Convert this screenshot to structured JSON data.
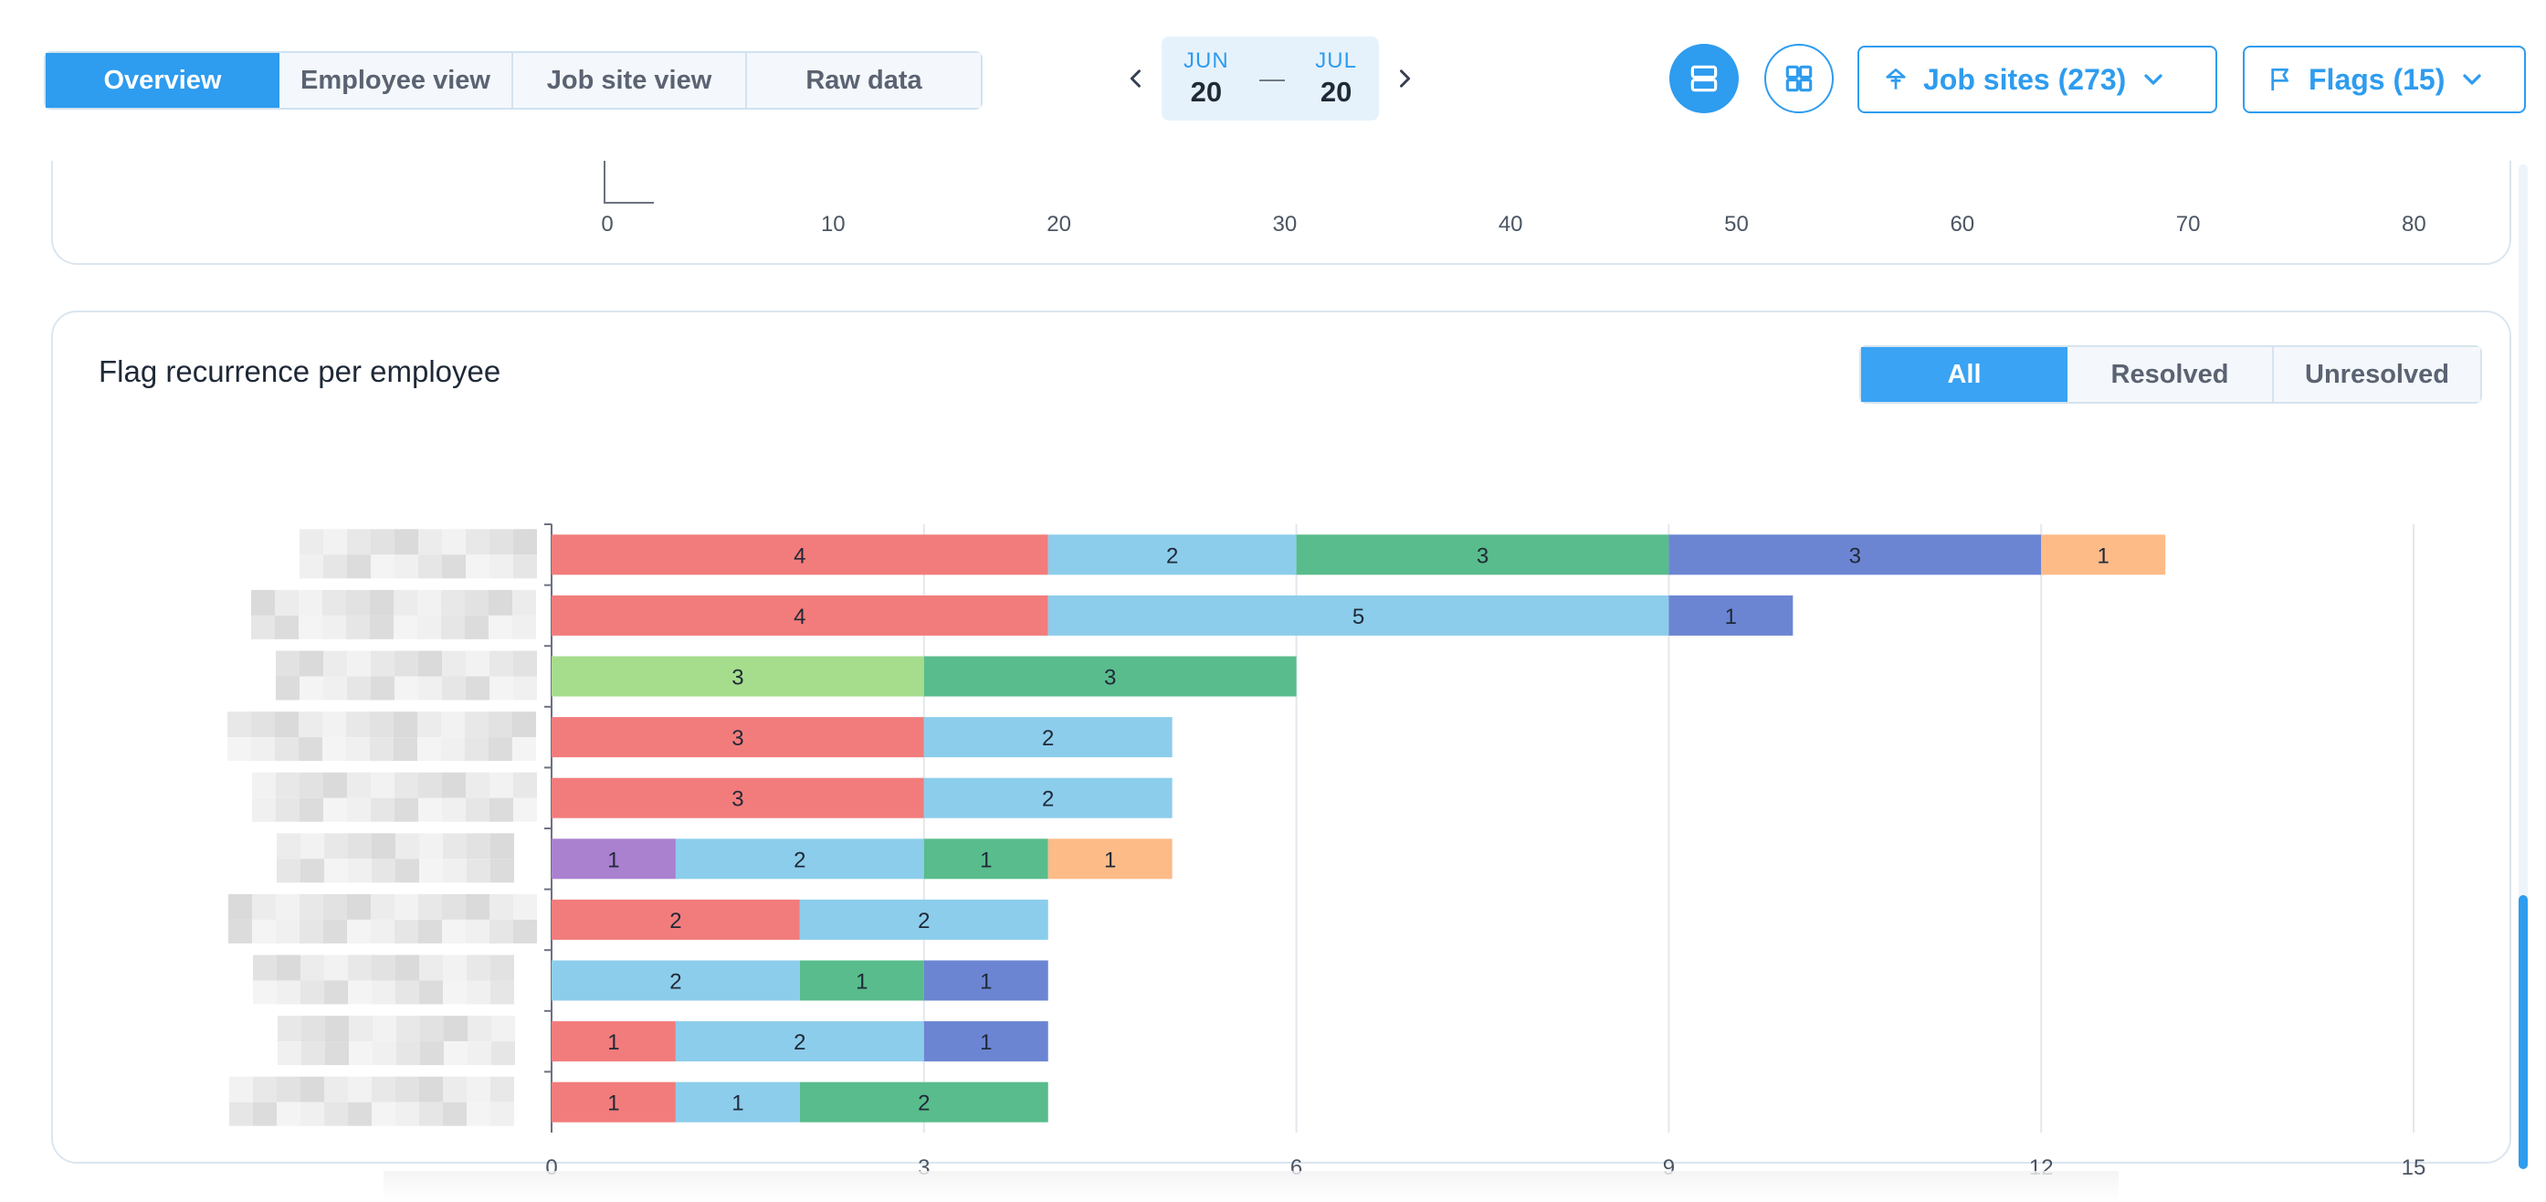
{
  "header": {
    "view_tabs": [
      {
        "label": "Overview",
        "active": true
      },
      {
        "label": "Employee view",
        "active": false
      },
      {
        "label": "Job site view",
        "active": false
      },
      {
        "label": "Raw data",
        "active": false
      }
    ],
    "date_range": {
      "start_month": "JUN",
      "start_day": "20",
      "separator": "—",
      "end_month": "JUL",
      "end_day": "20"
    },
    "job_sites_label": "Job sites (273)",
    "flags_label": "Flags (15)",
    "accent_color": "#2e9cef"
  },
  "prev_chart": {
    "x_ticks": [
      "0",
      "10",
      "20",
      "30",
      "40",
      "50",
      "60",
      "70",
      "80"
    ]
  },
  "card": {
    "title": "Flag recurrence per employee",
    "filter_tabs": [
      {
        "label": "All",
        "active": true
      },
      {
        "label": "Resolved",
        "active": false
      },
      {
        "label": "Unresolved",
        "active": false
      }
    ]
  },
  "chart_data": {
    "type": "bar",
    "orientation": "horizontal",
    "stacked": true,
    "title": "Flag recurrence per employee",
    "xlabel": "",
    "ylabel": "",
    "xlim": [
      0,
      15
    ],
    "x_ticks": [
      0,
      3,
      6,
      9,
      12,
      15
    ],
    "grid": true,
    "category_labels_redacted": true,
    "rows": [
      {
        "segments": [
          {
            "color": "#f27c7c",
            "value": 4
          },
          {
            "color": "#8ccdeb",
            "value": 2
          },
          {
            "color": "#59bc8c",
            "value": 3
          },
          {
            "color": "#6b85d3",
            "value": 3
          },
          {
            "color": "#fdbb88",
            "value": 1
          }
        ]
      },
      {
        "segments": [
          {
            "color": "#f27c7c",
            "value": 4
          },
          {
            "color": "#8ccdeb",
            "value": 5
          },
          {
            "color": "#6b85d3",
            "value": 1
          }
        ]
      },
      {
        "segments": [
          {
            "color": "#a6dd8c",
            "value": 3
          },
          {
            "color": "#59bc8c",
            "value": 3
          }
        ]
      },
      {
        "segments": [
          {
            "color": "#f27c7c",
            "value": 3
          },
          {
            "color": "#8ccdeb",
            "value": 2
          }
        ]
      },
      {
        "segments": [
          {
            "color": "#f27c7c",
            "value": 3
          },
          {
            "color": "#8ccdeb",
            "value": 2
          }
        ]
      },
      {
        "segments": [
          {
            "color": "#a981cf",
            "value": 1
          },
          {
            "color": "#8ccdeb",
            "value": 2
          },
          {
            "color": "#59bc8c",
            "value": 1
          },
          {
            "color": "#fdbb88",
            "value": 1
          }
        ]
      },
      {
        "segments": [
          {
            "color": "#f27c7c",
            "value": 2
          },
          {
            "color": "#8ccdeb",
            "value": 2
          }
        ]
      },
      {
        "segments": [
          {
            "color": "#8ccdeb",
            "value": 2
          },
          {
            "color": "#59bc8c",
            "value": 1
          },
          {
            "color": "#6b85d3",
            "value": 1
          }
        ]
      },
      {
        "segments": [
          {
            "color": "#f27c7c",
            "value": 1
          },
          {
            "color": "#8ccdeb",
            "value": 2
          },
          {
            "color": "#6b85d3",
            "value": 1
          }
        ]
      },
      {
        "segments": [
          {
            "color": "#f27c7c",
            "value": 1
          },
          {
            "color": "#8ccdeb",
            "value": 1
          },
          {
            "color": "#59bc8c",
            "value": 2
          }
        ]
      }
    ]
  }
}
